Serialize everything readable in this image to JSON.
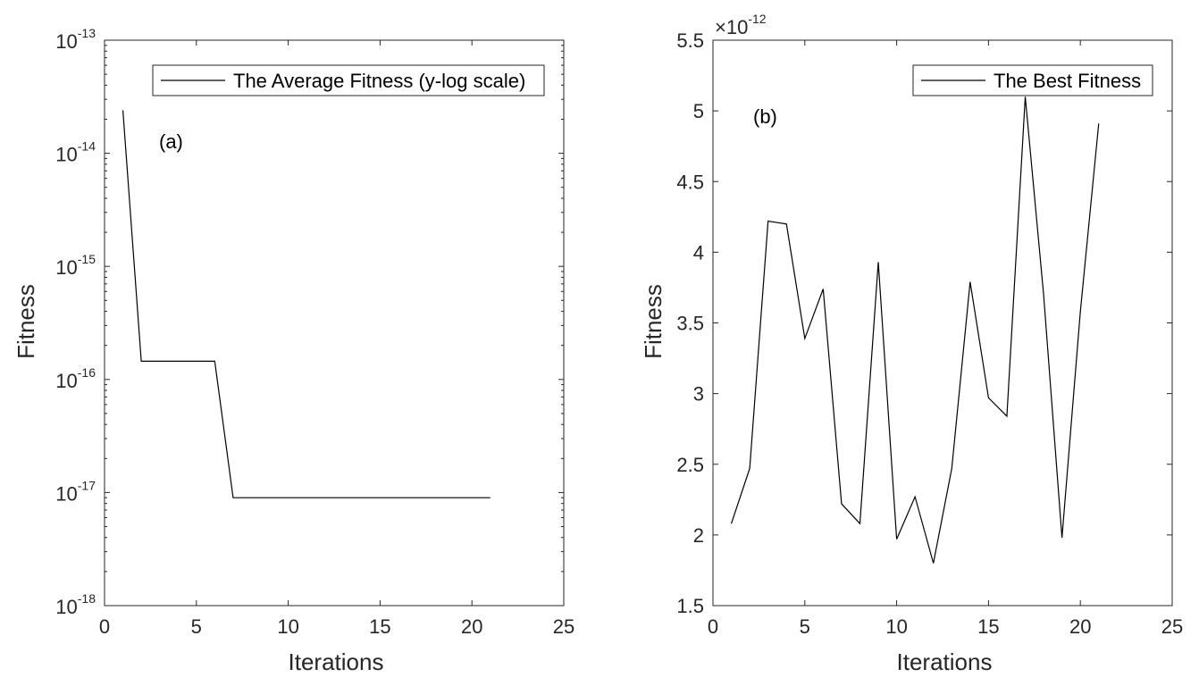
{
  "chart_data": [
    {
      "type": "line",
      "annotation": "(a)",
      "xlabel": "Iterations",
      "ylabel": "Fitness",
      "yscale": "log",
      "xlim": [
        0,
        25
      ],
      "ylim": [
        1e-18,
        1e-13
      ],
      "xticks": [
        "0",
        "5",
        "10",
        "15",
        "20",
        "25"
      ],
      "yticks": [
        {
          "base": "10",
          "exp": "-18"
        },
        {
          "base": "10",
          "exp": "-17"
        },
        {
          "base": "10",
          "exp": "-16"
        },
        {
          "base": "10",
          "exp": "-15"
        },
        {
          "base": "10",
          "exp": "-14"
        },
        {
          "base": "10",
          "exp": "-13"
        }
      ],
      "legend_position": "top-right",
      "series": [
        {
          "name": "The Average Fitness (y-log scale)",
          "color": "#000000",
          "x": [
            1,
            2,
            3,
            4,
            5,
            6,
            7,
            8,
            9,
            10,
            11,
            12,
            13,
            14,
            15,
            16,
            17,
            18,
            19,
            20,
            21
          ],
          "y": [
            2.4e-14,
            1.45e-16,
            1.45e-16,
            1.45e-16,
            1.45e-16,
            1.45e-16,
            9e-18,
            9e-18,
            9e-18,
            9e-18,
            9e-18,
            9e-18,
            9e-18,
            9e-18,
            9e-18,
            9e-18,
            9e-18,
            9e-18,
            9e-18,
            9e-18,
            9e-18
          ]
        }
      ]
    },
    {
      "type": "line",
      "annotation": "(b)",
      "xlabel": "Iterations",
      "ylabel": "Fitness",
      "yscale": "linear",
      "y_multiplier": {
        "prefix": "×10",
        "exp": "-12"
      },
      "xlim": [
        0,
        25
      ],
      "ylim": [
        1.5,
        5.5
      ],
      "xticks": [
        "0",
        "5",
        "10",
        "15",
        "20",
        "25"
      ],
      "yticks": [
        "1.5",
        "2",
        "2.5",
        "3",
        "3.5",
        "4",
        "4.5",
        "5",
        "5.5"
      ],
      "legend_position": "top-right",
      "series": [
        {
          "name": "The Best Fitness",
          "color": "#000000",
          "x": [
            1,
            2,
            3,
            4,
            5,
            6,
            7,
            8,
            9,
            10,
            11,
            12,
            13,
            14,
            15,
            16,
            17,
            18,
            19,
            20,
            21
          ],
          "y": [
            2.08,
            2.47,
            4.22,
            4.2,
            3.39,
            3.74,
            2.22,
            2.08,
            3.93,
            1.97,
            2.27,
            1.8,
            2.47,
            3.79,
            2.97,
            2.84,
            5.1,
            3.7,
            1.98,
            3.58,
            4.91
          ]
        }
      ]
    }
  ]
}
